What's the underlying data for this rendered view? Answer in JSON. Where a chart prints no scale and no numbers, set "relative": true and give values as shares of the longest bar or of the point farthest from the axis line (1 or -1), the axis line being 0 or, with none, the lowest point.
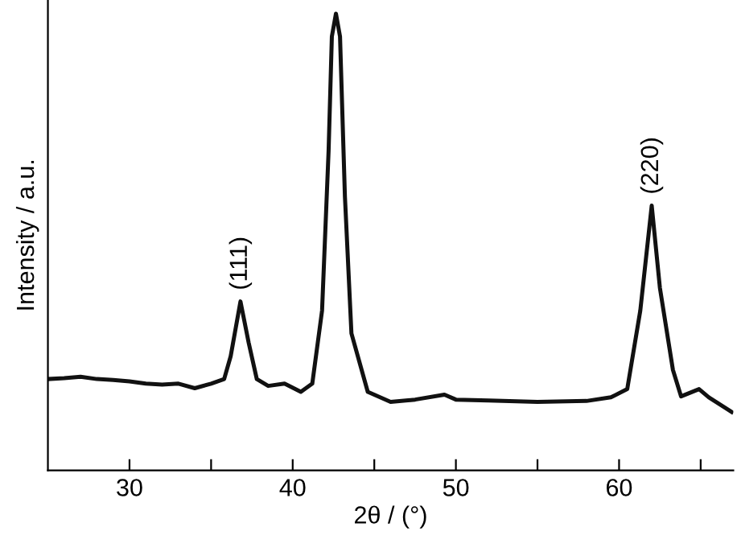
{
  "chart_data": {
    "type": "line",
    "relative": true,
    "xlabel": "2θ / (°)",
    "ylabel": "Intensity / a.u.",
    "xlim": [
      25,
      67
    ],
    "xticks": [
      30,
      {
        "value": 35,
        "label": null
      },
      40,
      {
        "value": 45,
        "label": null
      },
      50,
      {
        "value": 55,
        "label": null
      },
      60,
      {
        "value": 65,
        "label": null
      }
    ],
    "grid": false,
    "marker": "none",
    "line_style": "solid",
    "series": [
      {
        "color": "#111111",
        "x": [
          25,
          26,
          27,
          28,
          29,
          30,
          31,
          32,
          33,
          34,
          35,
          35.8,
          36.2,
          36.8,
          37.3,
          37.8,
          38.5,
          39.5,
          40.5,
          41.2,
          41.8,
          42.2,
          42.4,
          42.65,
          42.9,
          43.2,
          43.6,
          44.6,
          46,
          47.5,
          49.3,
          50,
          52,
          55,
          58,
          59.5,
          60.5,
          61.3,
          62.0,
          62.5,
          63.3,
          63.8,
          64.9,
          65.5,
          66.9
        ],
        "values": [
          0.2,
          0.202,
          0.205,
          0.2,
          0.198,
          0.195,
          0.19,
          0.188,
          0.19,
          0.18,
          0.19,
          0.2,
          0.25,
          0.37,
          0.28,
          0.2,
          0.185,
          0.19,
          0.172,
          0.19,
          0.35,
          0.7,
          0.95,
          1.0,
          0.95,
          0.6,
          0.3,
          0.172,
          0.15,
          0.155,
          0.166,
          0.155,
          0.153,
          0.15,
          0.152,
          0.16,
          0.178,
          0.35,
          0.58,
          0.4,
          0.22,
          0.162,
          0.178,
          0.16,
          0.128
        ]
      }
    ],
    "annotations": [
      {
        "text": "(111)",
        "x": 36.8,
        "y": 0.37
      },
      {
        "text": "(220)",
        "x": 62.0,
        "y": 0.58
      }
    ]
  }
}
